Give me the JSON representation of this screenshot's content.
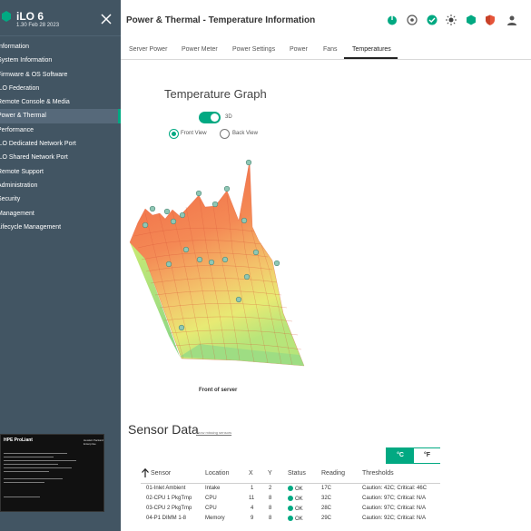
{
  "app": {
    "title": "iLO 6",
    "version": "1.30 Feb 28 2023"
  },
  "sidebar": {
    "items": [
      {
        "label": "Information",
        "active": false
      },
      {
        "label": "System Information",
        "active": false
      },
      {
        "label": "Firmware & OS Software",
        "active": false
      },
      {
        "label": "iLO Federation",
        "active": false
      },
      {
        "label": "Remote Console & Media",
        "active": false
      },
      {
        "label": "Power & Thermal",
        "active": true
      },
      {
        "label": "Performance",
        "active": false
      },
      {
        "label": "iLO Dedicated Network Port",
        "active": false
      },
      {
        "label": "iLO Shared Network Port",
        "active": false
      },
      {
        "label": "Remote Support",
        "active": false
      },
      {
        "label": "Administration",
        "active": false
      },
      {
        "label": "Security",
        "active": false
      },
      {
        "label": "Management",
        "active": false
      },
      {
        "label": "Lifecycle Management",
        "active": false
      }
    ],
    "thumbnail": {
      "title": "HPE ProLiant",
      "brand": "Hewlett Packard Enterprise"
    }
  },
  "header": {
    "page_title": "Power & Thermal - Temperature Information",
    "icons": [
      "power-icon",
      "target-icon",
      "health-check-icon",
      "brightness-icon",
      "hexagon-icon",
      "shield-icon"
    ]
  },
  "tabs": [
    {
      "label": "Server Power",
      "active": false
    },
    {
      "label": "Power Meter",
      "active": false
    },
    {
      "label": "Power Settings",
      "active": false
    },
    {
      "label": "Power",
      "active": false
    },
    {
      "label": "Fans",
      "active": false
    },
    {
      "label": "Temperatures",
      "active": true
    }
  ],
  "graph": {
    "title": "Temperature Graph",
    "toggle_label": "3D",
    "toggle_on": true,
    "front_view_label": "Front View",
    "back_view_label": "Back View",
    "selected_view": "front",
    "caption": "Front of server"
  },
  "sensors": {
    "title": "Sensor Data",
    "link": "show missing sensors",
    "unit_c": "°C",
    "unit_f": "°F",
    "selected_unit": "C",
    "columns": [
      "Sensor",
      "Location",
      "X",
      "Y",
      "Status",
      "Reading",
      "Thresholds"
    ],
    "rows": [
      {
        "sensor": "01-Inlet Ambient",
        "location": "Intake",
        "x": "1",
        "y": "2",
        "status": "OK",
        "reading": "17C",
        "thresholds": "Caution: 42C; Critical: 46C"
      },
      {
        "sensor": "02-CPU 1 PkgTmp",
        "location": "CPU",
        "x": "11",
        "y": "8",
        "status": "OK",
        "reading": "32C",
        "thresholds": "Caution: 97C; Critical: N/A"
      },
      {
        "sensor": "03-CPU 2 PkgTmp",
        "location": "CPU",
        "x": "4",
        "y": "8",
        "status": "OK",
        "reading": "28C",
        "thresholds": "Caution: 97C; Critical: N/A"
      },
      {
        "sensor": "04-P1 DIMM 1-8",
        "location": "Memory",
        "x": "9",
        "y": "8",
        "status": "OK",
        "reading": "29C",
        "thresholds": "Caution: 92C; Critical: N/A"
      }
    ]
  },
  "colors": {
    "accent": "#01a982",
    "sidebar": "#425563",
    "surface_hot": "#f26b4a",
    "surface_cool": "#c8e86a"
  }
}
